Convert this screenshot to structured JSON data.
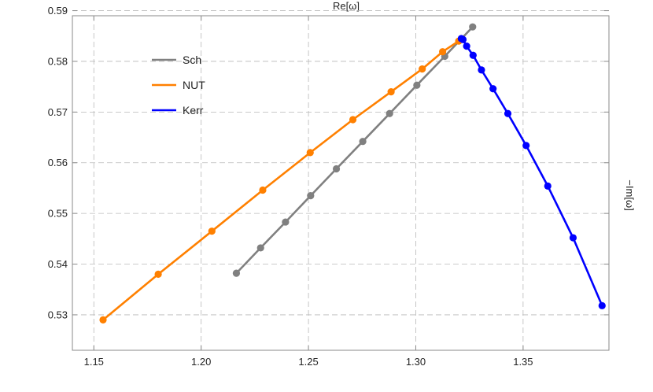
{
  "chart_data": {
    "type": "line",
    "title": "Re[ω]",
    "xlabel": "",
    "ylabel": "−Im[ω]",
    "xlim": [
      1.14,
      1.39
    ],
    "ylim": [
      0.523,
      0.589
    ],
    "x_ticks": [
      1.15,
      1.2,
      1.25,
      1.3,
      1.35
    ],
    "x_tick_labels": [
      "1.15",
      "1.20",
      "1.25",
      "1.30",
      "1.35"
    ],
    "y_ticks": [
      0.53,
      0.54,
      0.55,
      0.56,
      0.57,
      0.58,
      0.59
    ],
    "y_tick_labels": [
      "0.53",
      "0.54",
      "0.55",
      "0.56",
      "0.57",
      "0.58",
      "0.59"
    ],
    "grid": true,
    "legend_position": "top-left",
    "series": [
      {
        "name": "Sch",
        "color": "#808080",
        "points": [
          [
            1.2164,
            0.5382
          ],
          [
            1.2277,
            0.5432
          ],
          [
            1.2393,
            0.5483
          ],
          [
            1.251,
            0.5535
          ],
          [
            1.263,
            0.5588
          ],
          [
            1.2753,
            0.5642
          ],
          [
            1.2878,
            0.5697
          ],
          [
            1.3005,
            0.5753
          ],
          [
            1.3135,
            0.581
          ],
          [
            1.3265,
            0.5868
          ]
        ]
      },
      {
        "name": "NUT",
        "color": "#ff8000",
        "points": [
          [
            1.1543,
            0.529
          ],
          [
            1.18,
            0.538
          ],
          [
            1.205,
            0.5465
          ],
          [
            1.2287,
            0.5546
          ],
          [
            1.2508,
            0.562
          ],
          [
            1.2707,
            0.5685
          ],
          [
            1.2885,
            0.574
          ],
          [
            1.303,
            0.5785
          ],
          [
            1.3125,
            0.5819
          ],
          [
            1.32,
            0.584
          ]
        ]
      },
      {
        "name": "Kerr",
        "color": "#0000ff",
        "points": [
          [
            1.3212,
            0.5845
          ],
          [
            1.322,
            0.5843
          ],
          [
            1.3237,
            0.583
          ],
          [
            1.3267,
            0.5812
          ],
          [
            1.3306,
            0.5783
          ],
          [
            1.336,
            0.5746
          ],
          [
            1.3429,
            0.5697
          ],
          [
            1.3514,
            0.5634
          ],
          [
            1.3615,
            0.5554
          ],
          [
            1.3733,
            0.5452
          ],
          [
            1.3868,
            0.5318
          ]
        ]
      }
    ]
  }
}
